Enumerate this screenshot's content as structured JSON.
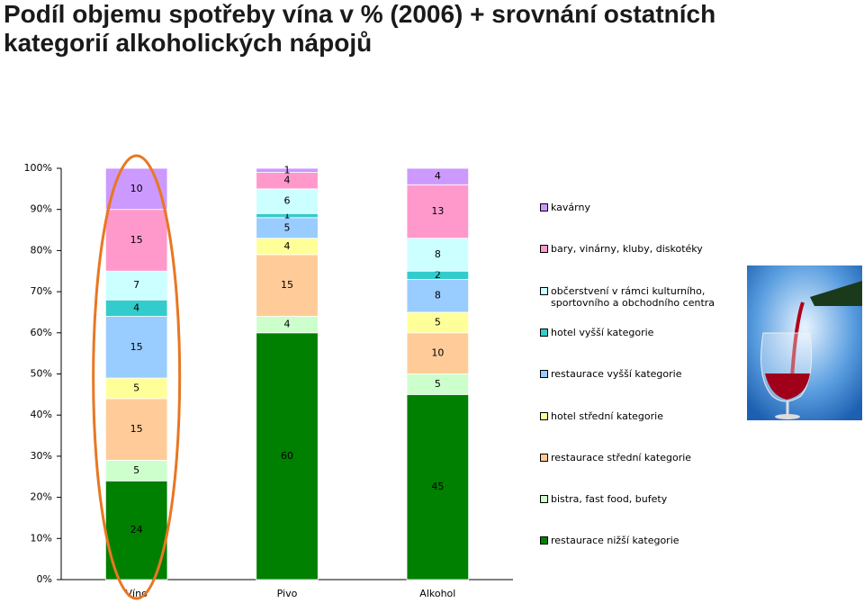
{
  "chart_data": {
    "type": "stacked-bar",
    "title": "Podíl objemu spotřeby vína v % (2006) + srovnání ostatních kategorií alkoholických nápojů",
    "categories": [
      "Víno",
      "Pivo",
      "Alkohol"
    ],
    "series": [
      {
        "name": "restaurace nižší kategorie",
        "color": "#008000",
        "values": [
          24,
          60,
          45
        ]
      },
      {
        "name": "bistra, fast food, bufety",
        "color": "#ccffcc",
        "values": [
          5,
          4,
          5
        ]
      },
      {
        "name": "restaurace střední kategorie",
        "color": "#ffcc99",
        "values": [
          15,
          15,
          10
        ]
      },
      {
        "name": "hotel střední kategorie",
        "color": "#ffff99",
        "values": [
          5,
          4,
          5
        ]
      },
      {
        "name": "restaurace vyšší kategorie",
        "color": "#99ccff",
        "values": [
          15,
          5,
          8
        ]
      },
      {
        "name": "hotel vyšší kategorie",
        "color": "#33cccc",
        "values": [
          4,
          1,
          2
        ]
      },
      {
        "name": "občerstvení v rámci kulturního, sportovního a obchodního centra",
        "color": "#ccffff",
        "values": [
          7,
          6,
          8
        ]
      },
      {
        "name": "bary, vinárny, kluby, diskotéky",
        "color": "#ff99cc",
        "values": [
          15,
          4,
          13
        ]
      },
      {
        "name": "kavárny",
        "color": "#cc99ff",
        "values": [
          10,
          1,
          4
        ]
      }
    ],
    "ylim": [
      0,
      100
    ],
    "yticks": [
      {
        "value": 0,
        "label": "0%"
      },
      {
        "value": 10,
        "label": "10%"
      },
      {
        "value": 20,
        "label": "20%"
      },
      {
        "value": 30,
        "label": "30%"
      },
      {
        "value": 40,
        "label": "40%"
      },
      {
        "value": 50,
        "label": "50%"
      },
      {
        "value": 60,
        "label": "60%"
      },
      {
        "value": 70,
        "label": "70%"
      },
      {
        "value": 80,
        "label": "80%"
      },
      {
        "value": 90,
        "label": "90%"
      },
      {
        "value": 100,
        "label": "100%"
      }
    ],
    "legend": "right"
  }
}
